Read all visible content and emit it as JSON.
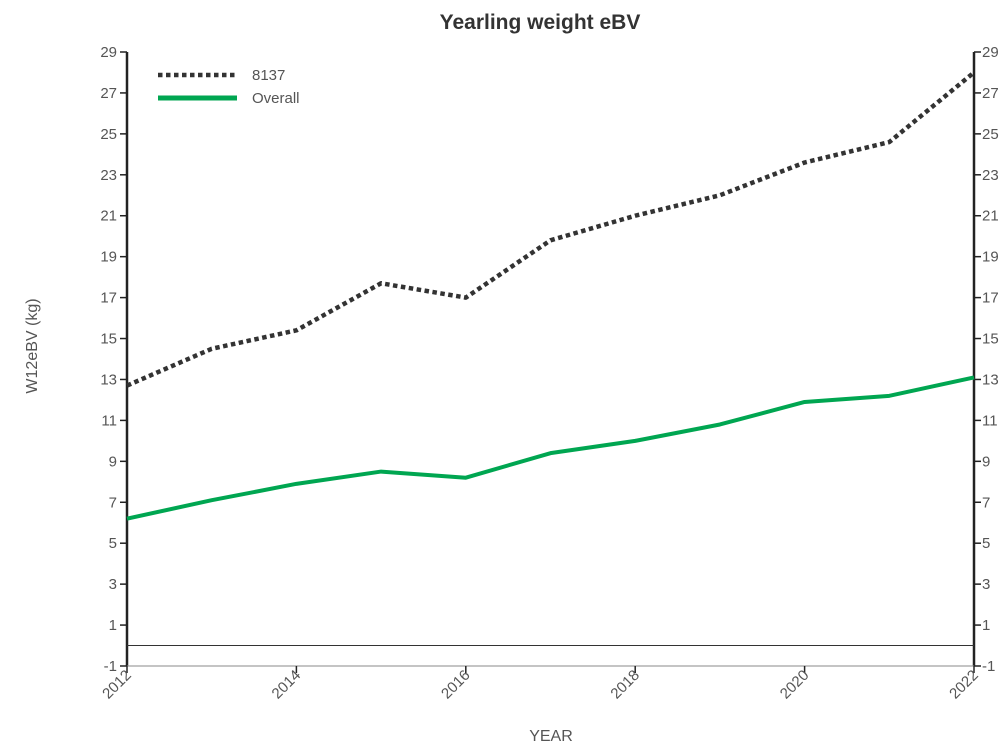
{
  "chart_data": {
    "type": "line",
    "title": "Yearling weight eBV",
    "xlabel": "YEAR",
    "ylabel": "W12eBV (kg)",
    "ylim": [
      -1,
      29
    ],
    "y_ticks": [
      "-1",
      "1",
      "3",
      "5",
      "7",
      "9",
      "11",
      "13",
      "15",
      "17",
      "19",
      "21",
      "23",
      "25",
      "27",
      "29"
    ],
    "xlim": [
      2012,
      2022
    ],
    "x_tick_labels": [
      "2012",
      "2014",
      "2016",
      "2018",
      "2020",
      "2022"
    ],
    "x_tick_values": [
      2012,
      2014,
      2016,
      2018,
      2020,
      2022
    ],
    "reference_line": 0,
    "grid": false,
    "legend_position": "top-left",
    "x": [
      2012,
      2013,
      2014,
      2015,
      2016,
      2017,
      2018,
      2019,
      2020,
      2021,
      2022
    ],
    "series": [
      {
        "name": "8137",
        "style": "dotted",
        "color": "#333333",
        "values": [
          12.7,
          14.5,
          15.4,
          17.7,
          17.0,
          19.8,
          21.0,
          22.0,
          23.6,
          24.6,
          28.0
        ]
      },
      {
        "name": "Overall",
        "style": "solid",
        "color": "#00a651",
        "values": [
          6.2,
          7.1,
          7.9,
          8.5,
          8.2,
          9.4,
          10.0,
          10.8,
          11.9,
          12.2,
          13.1
        ]
      }
    ]
  }
}
